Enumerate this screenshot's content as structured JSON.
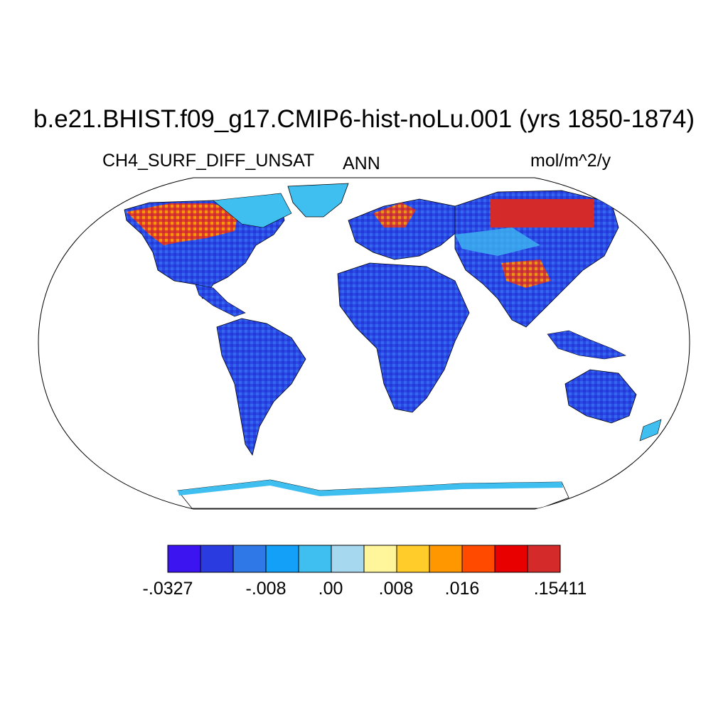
{
  "title": "b.e21.BHIST.f09_g17.CMIP6-hist-noLu.001 (yrs 1850-1874)",
  "left_label": "CH4_SURF_DIFF_UNSAT",
  "center_label": "ANN",
  "right_label": "mol/m^2/y",
  "colors": {
    "ocean": "#ffffff",
    "coastline": "#000000",
    "colorbar": [
      "#3c14f0",
      "#2a3be0",
      "#2f78e8",
      "#12a0f8",
      "#3fbef0",
      "#a6d8f0",
      "#fff59a",
      "#ffcc2a",
      "#ff9800",
      "#ff4a00",
      "#e80000",
      "#d42a2a"
    ]
  },
  "colorbar_labels": [
    "-.0327",
    "-.008",
    ".00",
    ".008",
    ".016",
    ".15411"
  ],
  "chart_data": {
    "type": "heatmap",
    "projection": "Robinson",
    "variable": "CH4_SURF_DIFF_UNSAT",
    "period": "ANN",
    "units": "mol/m^2/y",
    "colorbar_bins": 12,
    "colorbar_range": [
      -0.0327,
      0.15411
    ],
    "colorbar_tick_labels": [
      "-.0327",
      "-.008",
      ".00",
      ".008",
      ".016",
      ".15411"
    ]
  }
}
